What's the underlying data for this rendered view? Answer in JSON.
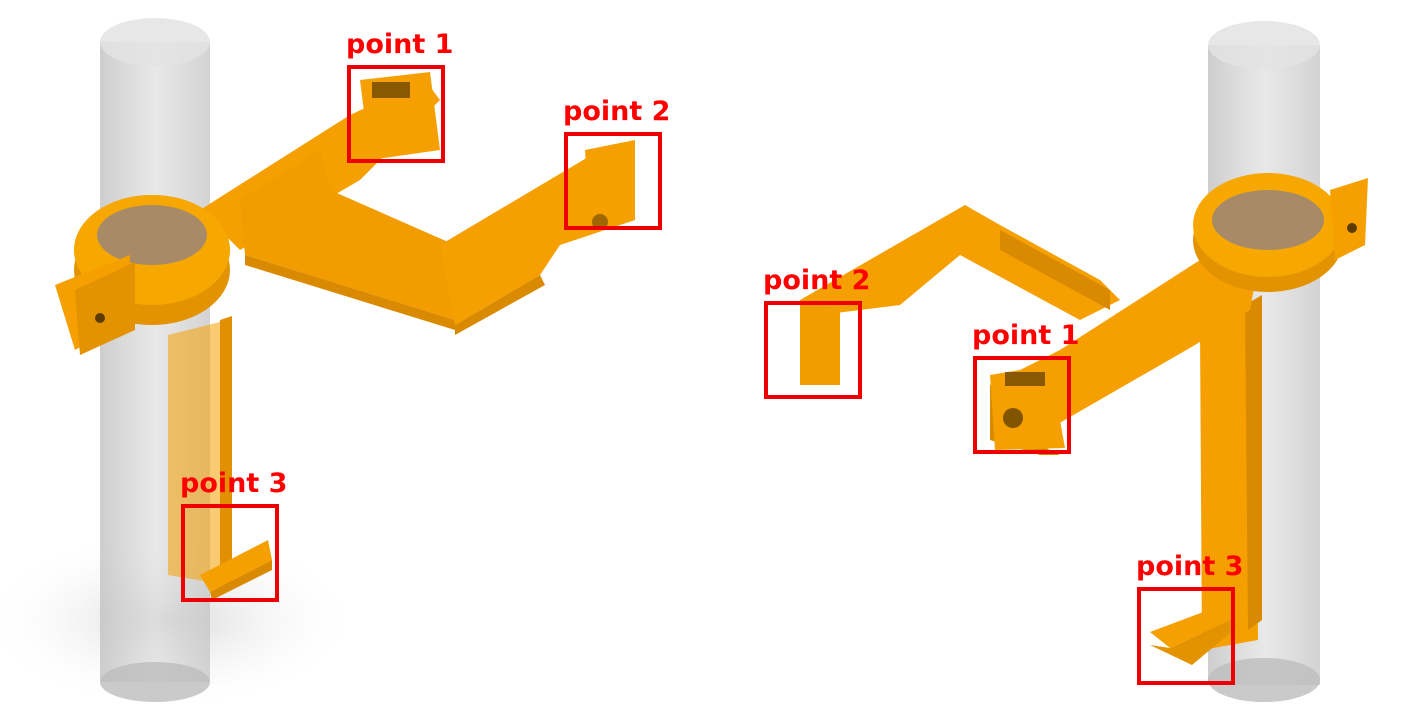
{
  "views": {
    "left": {
      "callouts": [
        {
          "label": "point 1"
        },
        {
          "label": "point 2"
        },
        {
          "label": "point 3"
        }
      ]
    },
    "right": {
      "callouts": [
        {
          "label": "point 2"
        },
        {
          "label": "point 1"
        },
        {
          "label": "point 3"
        }
      ]
    }
  },
  "colors": {
    "bracket": "#f5a000",
    "bracket_shade": "#d98a00",
    "pole": "#c8c8c8",
    "callout": "#ff0000"
  }
}
